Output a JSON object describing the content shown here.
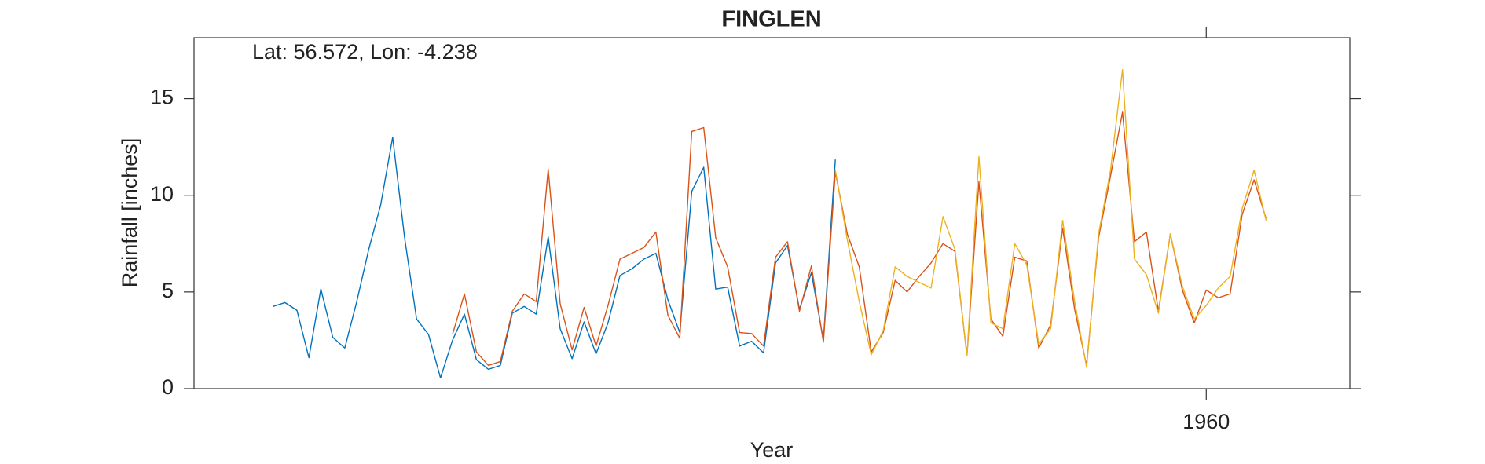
{
  "chart_data": {
    "type": "line",
    "title": "FINGLEN",
    "annotation": "Lat: 56.572, Lon: -4.238",
    "x_label": "Year",
    "y_label": "Rainfall [inches]",
    "x": [
      1882,
      1883,
      1884,
      1885,
      1886,
      1887,
      1888,
      1889,
      1890,
      1891,
      1892,
      1893,
      1894,
      1895,
      1896,
      1897,
      1898,
      1899,
      1900,
      1901,
      1902,
      1903,
      1904,
      1905,
      1906,
      1907,
      1908,
      1909,
      1910,
      1911,
      1912,
      1913,
      1914,
      1915,
      1916,
      1917,
      1918,
      1919,
      1920,
      1921,
      1922,
      1923,
      1924,
      1925,
      1926,
      1927,
      1928,
      1929,
      1930,
      1931,
      1932,
      1933,
      1934,
      1935,
      1936,
      1937,
      1938,
      1939,
      1940,
      1941,
      1942,
      1943,
      1944,
      1945,
      1946,
      1947,
      1948,
      1949,
      1950,
      1951,
      1952,
      1953,
      1954,
      1955,
      1956,
      1957,
      1958,
      1959,
      1960,
      1961,
      1962,
      1963,
      1964,
      1965
    ],
    "series": [
      {
        "color": "#0072BD",
        "values": [
          4.25,
          4.45,
          4.05,
          1.6,
          5.15,
          2.65,
          2.1,
          4.5,
          7.2,
          9.5,
          13.0,
          7.8,
          3.6,
          2.8,
          0.55,
          2.5,
          3.85,
          1.5,
          1.0,
          1.2,
          3.9,
          4.25,
          3.85,
          7.85,
          3.1,
          1.55,
          3.45,
          1.8,
          3.4,
          5.85,
          6.2,
          6.7,
          7.0,
          4.6,
          2.9,
          10.2,
          11.45,
          5.15,
          5.25,
          2.2,
          2.45,
          1.85,
          6.5,
          7.4,
          4.1,
          6.0,
          2.5,
          11.85,
          null,
          null,
          null,
          null,
          null,
          null,
          null,
          null,
          null,
          null,
          null,
          null,
          null,
          null,
          null,
          null,
          null,
          null,
          null,
          null,
          null,
          null,
          null,
          null,
          null,
          null,
          null,
          null,
          null,
          null,
          null,
          null,
          null,
          null,
          null,
          null
        ]
      },
      {
        "color": "#D95319",
        "values": [
          null,
          null,
          null,
          null,
          null,
          null,
          null,
          null,
          null,
          null,
          null,
          null,
          null,
          null,
          null,
          2.8,
          4.9,
          1.9,
          1.2,
          1.4,
          4.0,
          4.9,
          4.5,
          11.35,
          4.4,
          2.0,
          4.2,
          2.2,
          4.3,
          6.7,
          7.0,
          7.3,
          8.1,
          3.8,
          2.6,
          13.3,
          13.5,
          7.8,
          6.3,
          2.9,
          2.85,
          2.2,
          6.8,
          7.6,
          4.0,
          6.35,
          2.4,
          11.2,
          8.0,
          6.3,
          1.9,
          2.9,
          5.6,
          5.0,
          5.8,
          6.5,
          7.5,
          7.1,
          1.7,
          10.7,
          3.6,
          2.7,
          6.8,
          6.6,
          2.1,
          3.3,
          8.3,
          4.1,
          1.2,
          7.8,
          11.0,
          14.3,
          7.6,
          8.1,
          4.0,
          8.0,
          5.1,
          3.4,
          5.1,
          4.7,
          4.9,
          9.0,
          10.8,
          8.8
        ]
      },
      {
        "color": "#EDB120",
        "values": [
          null,
          null,
          null,
          null,
          null,
          null,
          null,
          null,
          null,
          null,
          null,
          null,
          null,
          null,
          null,
          null,
          null,
          null,
          null,
          null,
          null,
          null,
          null,
          null,
          null,
          null,
          null,
          null,
          null,
          null,
          null,
          null,
          null,
          null,
          null,
          null,
          null,
          null,
          null,
          null,
          null,
          null,
          null,
          null,
          null,
          null,
          null,
          11.3,
          7.7,
          4.5,
          1.75,
          3.0,
          6.3,
          5.8,
          5.5,
          5.2,
          8.9,
          7.2,
          1.7,
          12.0,
          3.4,
          3.1,
          7.5,
          6.4,
          2.3,
          3.1,
          8.7,
          4.5,
          1.1,
          8.0,
          11.3,
          16.5,
          6.7,
          5.9,
          3.9,
          8.0,
          5.3,
          3.6,
          4.3,
          5.2,
          5.8,
          9.3,
          11.3,
          8.7
        ]
      }
    ],
    "xlim": [
      1875.4,
      1972
    ],
    "xticks": [
      1960
    ],
    "ylim": [
      0,
      18.15
    ],
    "yticks": [
      0,
      5,
      10,
      15
    ]
  }
}
